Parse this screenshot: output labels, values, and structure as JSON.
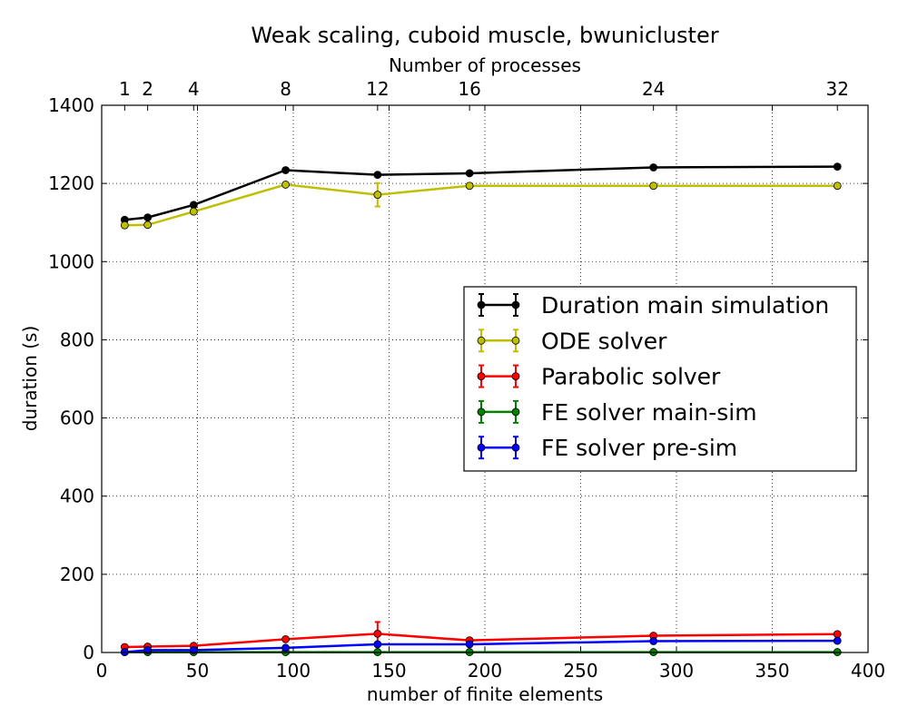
{
  "chart_data": {
    "type": "line",
    "title": "Weak scaling, cuboid muscle, bwunicluster",
    "xlabel": "number of finite elements",
    "ylabel": "duration (s)",
    "top_xlabel": "Number of processes",
    "xlim": [
      0,
      400
    ],
    "ylim": [
      0,
      1400
    ],
    "xticks": [
      0,
      50,
      100,
      150,
      200,
      250,
      300,
      350,
      400
    ],
    "yticks": [
      0,
      200,
      400,
      600,
      800,
      1000,
      1200,
      1400
    ],
    "top_ticks": [
      {
        "x": 12,
        "label": "1"
      },
      {
        "x": 24,
        "label": "2"
      },
      {
        "x": 48,
        "label": "4"
      },
      {
        "x": 96,
        "label": "8"
      },
      {
        "x": 144,
        "label": "12"
      },
      {
        "x": 192,
        "label": "16"
      },
      {
        "x": 288,
        "label": "24"
      },
      {
        "x": 384,
        "label": "32"
      }
    ],
    "grid": true,
    "legend_position": "center-right",
    "x": [
      12,
      24,
      48,
      96,
      144,
      192,
      288,
      384
    ],
    "series": [
      {
        "name": "Duration main simulation",
        "color": "#000000",
        "values": [
          1107,
          1113,
          1145,
          1234,
          1222,
          1226,
          1241,
          1243
        ],
        "errors": [
          2,
          2,
          2,
          2,
          2,
          2,
          2,
          3
        ]
      },
      {
        "name": "ODE solver",
        "color": "#bfbf00",
        "values": [
          1093,
          1094,
          1128,
          1197,
          1171,
          1194,
          1194,
          1194
        ],
        "errors": [
          2,
          2,
          2,
          2,
          30,
          2,
          2,
          2
        ]
      },
      {
        "name": "Parabolic solver",
        "color": "#ff0000",
        "values": [
          14,
          15,
          17,
          34,
          48,
          31,
          43,
          47
        ],
        "errors": [
          2,
          2,
          2,
          2,
          30,
          3,
          2,
          3
        ]
      },
      {
        "name": "FE solver main-sim",
        "color": "#008000",
        "values": [
          1,
          1,
          1,
          1,
          1,
          1,
          1,
          1
        ],
        "errors": [
          0,
          0,
          0,
          0,
          0,
          0,
          0,
          0
        ]
      },
      {
        "name": "FE solver pre-sim",
        "color": "#0000ff",
        "values": [
          1,
          6,
          6,
          12,
          21,
          21,
          29,
          30
        ],
        "errors": [
          1,
          1,
          1,
          2,
          2,
          2,
          2,
          2
        ]
      }
    ]
  }
}
